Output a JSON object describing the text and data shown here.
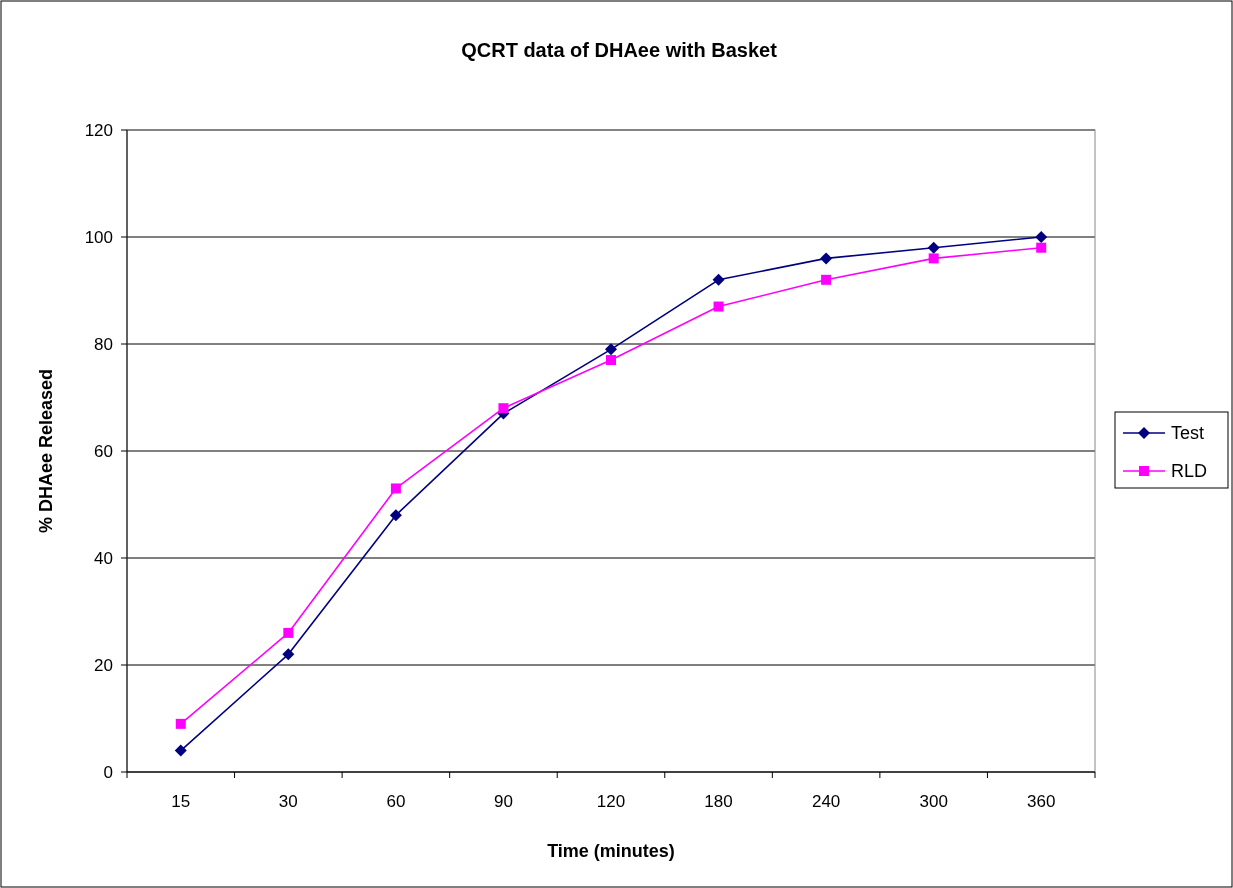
{
  "chart_data": {
    "type": "line",
    "title": "QCRT data of DHAee with Basket",
    "xlabel": "Time (minutes)",
    "ylabel": "% DHAee Released",
    "categories": [
      "15",
      "30",
      "60",
      "90",
      "120",
      "180",
      "240",
      "300",
      "360"
    ],
    "series": [
      {
        "name": "Test",
        "color": "#000080",
        "marker": "diamond",
        "values": [
          4,
          22,
          48,
          67,
          79,
          92,
          96,
          98,
          100
        ]
      },
      {
        "name": "RLD",
        "color": "#ff00ff",
        "marker": "square",
        "values": [
          9,
          26,
          53,
          68,
          77,
          87,
          92,
          96,
          98
        ]
      }
    ],
    "ylim": [
      0,
      120
    ],
    "yticks": [
      0,
      20,
      40,
      60,
      80,
      100,
      120
    ],
    "grid": "y",
    "legend": "right"
  }
}
